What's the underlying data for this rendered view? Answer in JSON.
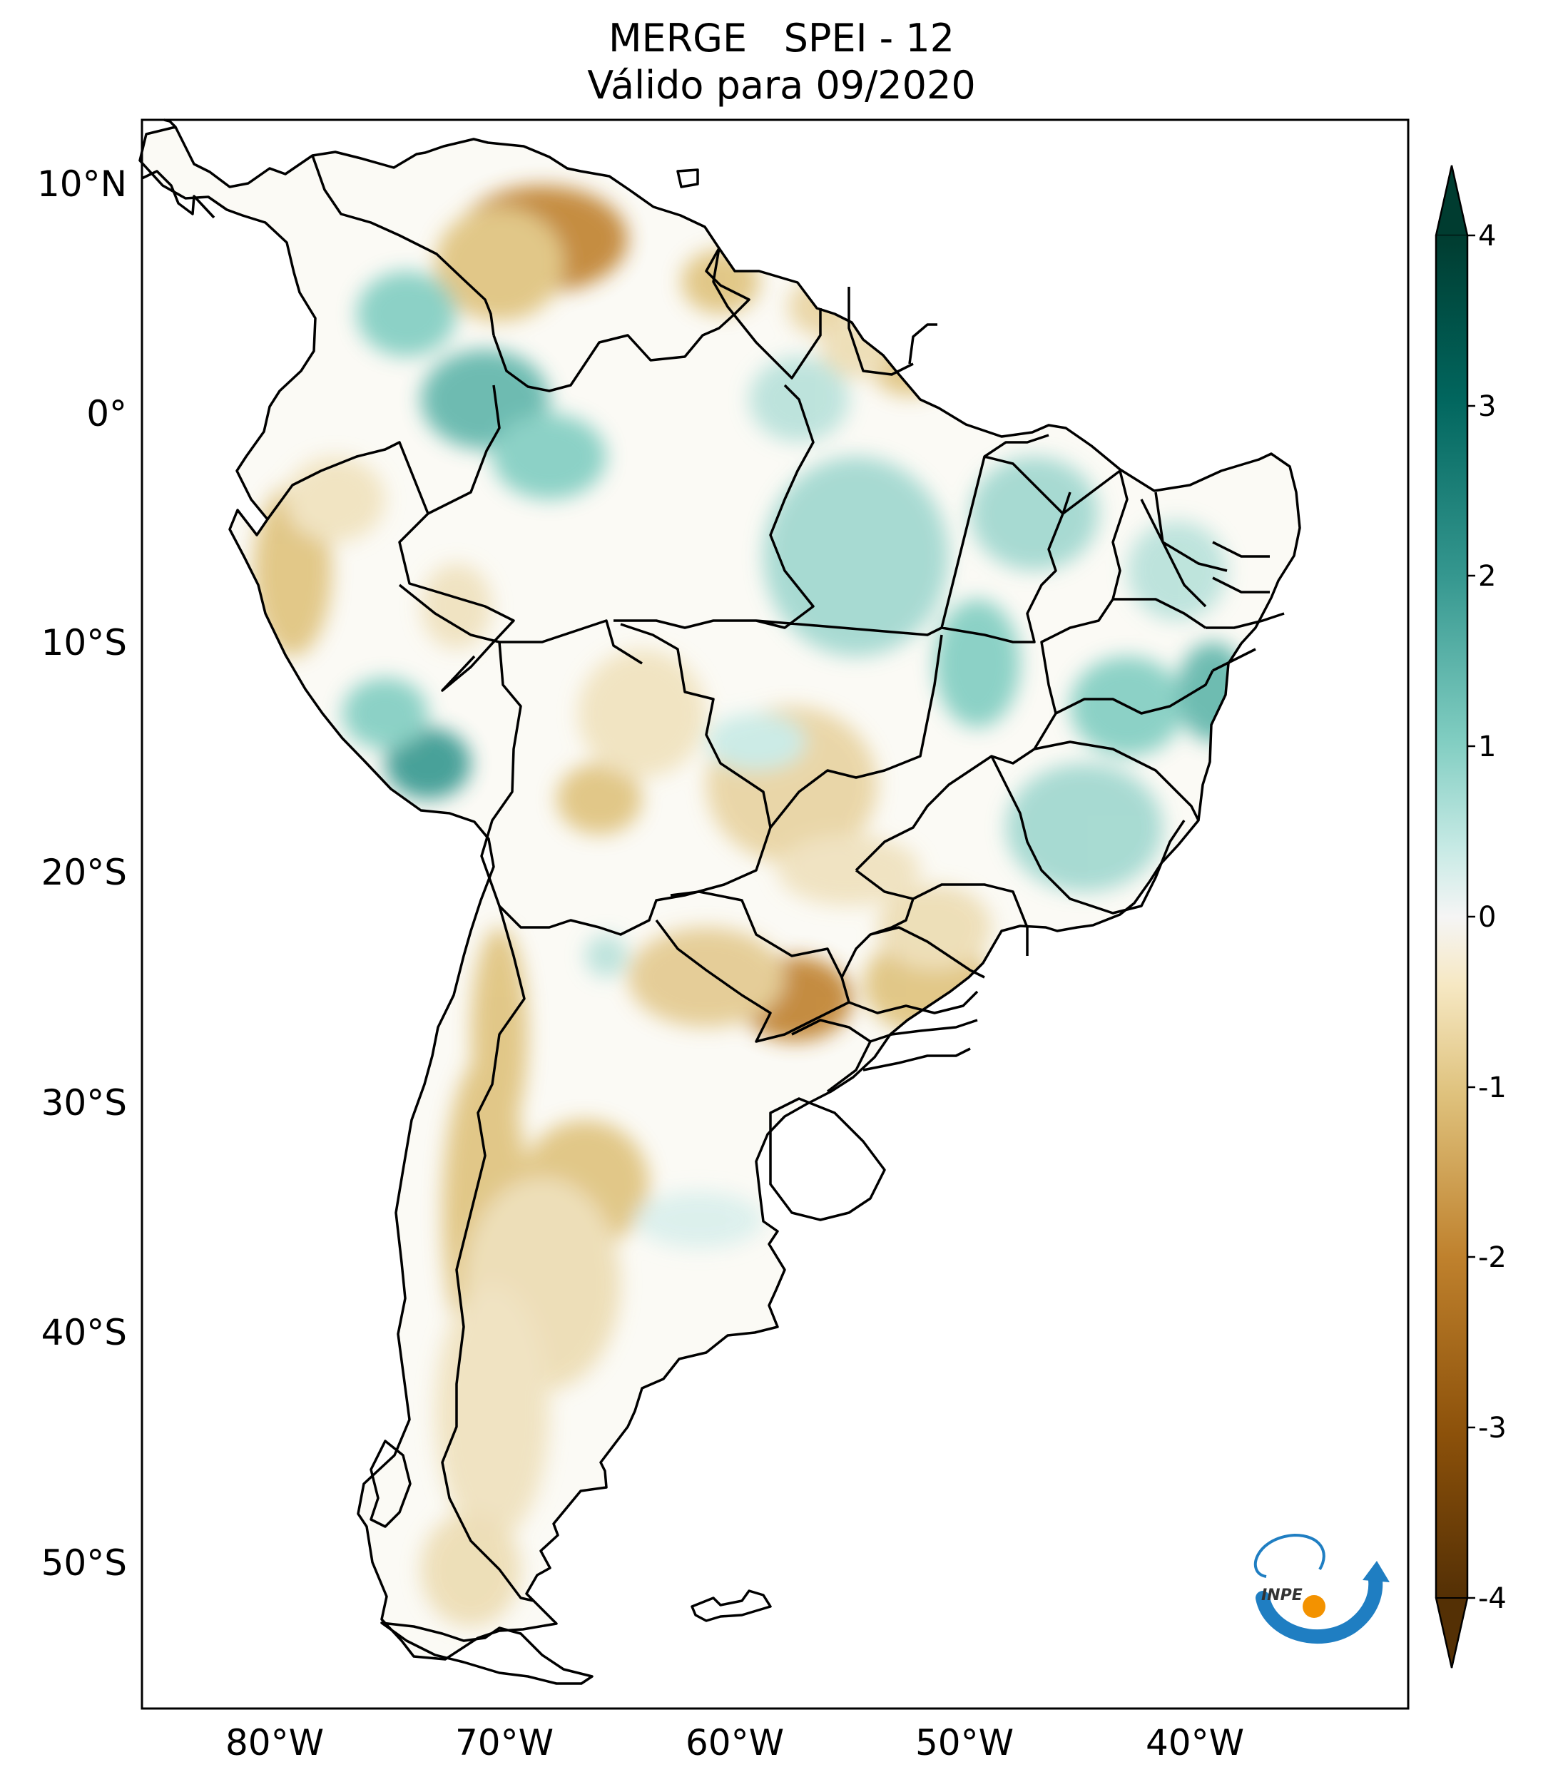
{
  "title": {
    "line1": "MERGE   SPEI - 12",
    "line2": "Válido para 09/2020"
  },
  "axes": {
    "lat_labels": [
      "10°N",
      "0°",
      "10°S",
      "20°S",
      "30°S",
      "40°S",
      "50°S"
    ],
    "lon_labels": [
      "80°W",
      "70°W",
      "60°W",
      "50°W",
      "40°W"
    ],
    "lon_range": [
      -85,
      -30
    ],
    "lat_range": [
      -57,
      13
    ]
  },
  "colorbar": {
    "ticks": [
      "4",
      "3",
      "2",
      "1",
      "0",
      "-1",
      "-2",
      "-3",
      "-4"
    ],
    "range": [
      -4,
      4
    ],
    "extend": "both",
    "colormap": "BrBG",
    "colors": {
      "min": "#543005",
      "dry_strong": "#8c510a",
      "dry_mid": "#bf812d",
      "dry_light": "#dfc27d",
      "dry_pale": "#f6e8c3",
      "neutral": "#f5f5f5",
      "wet_pale": "#c7eae5",
      "wet_light": "#80cdc1",
      "wet_mid": "#35978f",
      "wet_strong": "#01665e",
      "max": "#003c30"
    }
  },
  "logo": {
    "text": "INPE",
    "colors": {
      "arc": "#1f7ec2",
      "dot": "#f39200"
    }
  },
  "map_data": {
    "variable": "SPEI-12",
    "dry_regions": [
      "Venezuela llanos",
      "Guyana/Suriname coast",
      "Paraguay/Paraná basin",
      "southern Brazil",
      "northern Peru",
      "central Argentina / Andes"
    ],
    "wet_regions": [
      "western Amazon",
      "southern Peru",
      "Pará",
      "Bahia",
      "northeastern Brazil coast",
      "Minas Gerais"
    ]
  }
}
